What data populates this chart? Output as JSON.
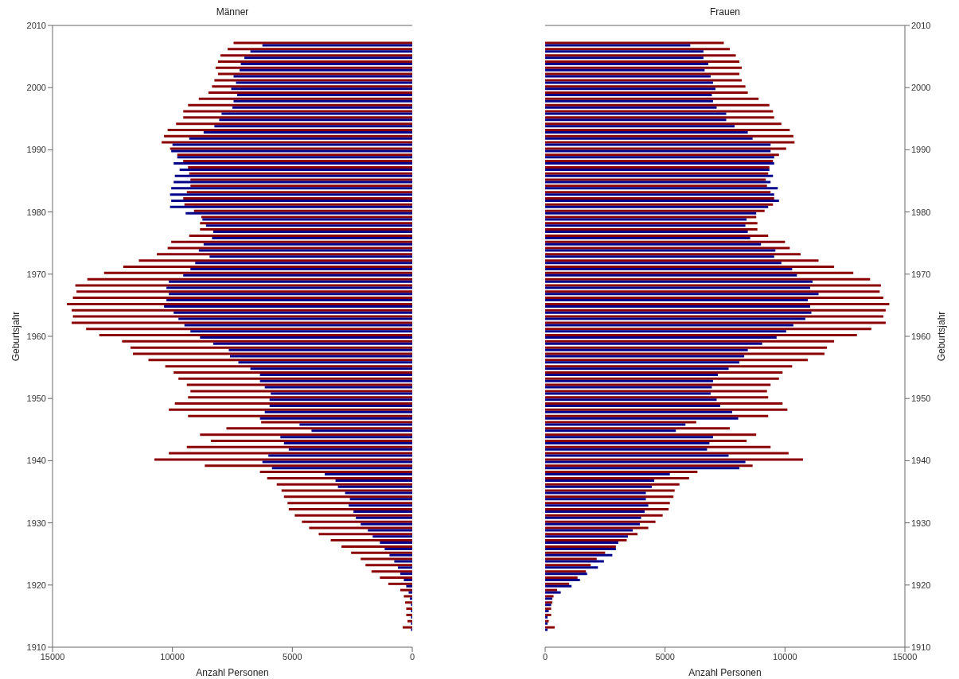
{
  "chart_data": [
    {
      "type": "bar",
      "orientation": "horizontal",
      "title": "Männer",
      "xlabel": "Anzahl Personen",
      "ylabel": "Geburtsjahr",
      "xlim": [
        15000,
        0
      ],
      "xticks": [
        15000,
        10000,
        5000,
        0
      ],
      "ylim": [
        1910,
        2010
      ],
      "yticks": [
        1910,
        1920,
        1930,
        1940,
        1950,
        1960,
        1970,
        1980,
        1990,
        2000,
        2010
      ],
      "x": [
        1913,
        1914,
        1915,
        1916,
        1917,
        1918,
        1919,
        1920,
        1921,
        1922,
        1923,
        1924,
        1925,
        1926,
        1927,
        1928,
        1929,
        1930,
        1931,
        1932,
        1933,
        1934,
        1935,
        1936,
        1937,
        1938,
        1939,
        1940,
        1941,
        1942,
        1943,
        1944,
        1945,
        1946,
        1947,
        1948,
        1949,
        1950,
        1951,
        1952,
        1953,
        1954,
        1955,
        1956,
        1957,
        1958,
        1959,
        1960,
        1961,
        1962,
        1963,
        1964,
        1965,
        1966,
        1967,
        1968,
        1969,
        1970,
        1971,
        1972,
        1973,
        1974,
        1975,
        1976,
        1977,
        1978,
        1979,
        1980,
        1981,
        1982,
        1983,
        1984,
        1985,
        1986,
        1987,
        1988,
        1989,
        1990,
        1991,
        1992,
        1993,
        1994,
        1995,
        1996,
        1997,
        1998,
        1999,
        2000,
        2001,
        2002,
        2003,
        2004,
        2005,
        2006,
        2007
      ],
      "series": [
        {
          "color": "#8b0000",
          "values": [
            400,
            200,
            250,
            250,
            300,
            350,
            500,
            1000,
            1350,
            1700,
            1950,
            2150,
            2550,
            2950,
            3400,
            3900,
            4300,
            4600,
            4900,
            5150,
            5200,
            5350,
            5450,
            5650,
            6050,
            6350,
            8650,
            10750,
            10150,
            9400,
            8400,
            8850,
            7750,
            6300,
            9350,
            10150,
            9900,
            9350,
            9250,
            9400,
            9750,
            9950,
            10300,
            11000,
            11650,
            11750,
            12100,
            13050,
            13600,
            14200,
            14150,
            14200,
            14400,
            14150,
            14000,
            14050,
            13550,
            12850,
            12050,
            11400,
            10650,
            10200,
            10050,
            9300,
            8850,
            8850,
            8800,
            9100,
            9500,
            9550,
            9400,
            9250,
            9250,
            9300,
            9350,
            9550,
            9800,
            10100,
            10450,
            10350,
            10200,
            9850,
            9550,
            9550,
            9350,
            8900,
            8500,
            8350,
            8250,
            8100,
            8200,
            8100,
            8000,
            7700,
            7450
          ]
        },
        {
          "color": "#00008b",
          "values": [
            50,
            50,
            50,
            50,
            50,
            100,
            150,
            250,
            350,
            500,
            600,
            750,
            950,
            1150,
            1350,
            1650,
            1850,
            2150,
            2350,
            2450,
            2650,
            2600,
            2800,
            3100,
            3200,
            3650,
            5850,
            6250,
            6000,
            5150,
            5350,
            5500,
            4200,
            4700,
            6350,
            6150,
            5950,
            5950,
            5900,
            6150,
            6350,
            6350,
            6750,
            7250,
            7600,
            7650,
            8300,
            8850,
            9250,
            9500,
            9750,
            9950,
            10350,
            10250,
            10150,
            10250,
            10150,
            9550,
            9250,
            9050,
            8450,
            8900,
            8700,
            8350,
            8300,
            8600,
            8750,
            9450,
            10100,
            10050,
            10100,
            10050,
            9950,
            9900,
            9700,
            9950,
            9800,
            10050,
            10000,
            9300,
            8700,
            8250,
            8050,
            7950,
            7500,
            7450,
            7300,
            7550,
            7350,
            7450,
            7200,
            7150,
            7000,
            6750,
            6250
          ]
        }
      ]
    },
    {
      "type": "bar",
      "orientation": "horizontal",
      "title": "Frauen",
      "xlabel": "Anzahl Personen",
      "ylabel": "Geburtsjahr",
      "xlim": [
        0,
        15000
      ],
      "xticks": [
        0,
        5000,
        10000,
        15000
      ],
      "ylim": [
        1910,
        2010
      ],
      "yticks": [
        1910,
        1920,
        1930,
        1940,
        1950,
        1960,
        1970,
        1980,
        1990,
        2000,
        2010
      ],
      "x": [
        1913,
        1914,
        1915,
        1916,
        1917,
        1918,
        1919,
        1920,
        1921,
        1922,
        1923,
        1924,
        1925,
        1926,
        1927,
        1928,
        1929,
        1930,
        1931,
        1932,
        1933,
        1934,
        1935,
        1936,
        1937,
        1938,
        1939,
        1940,
        1941,
        1942,
        1943,
        1944,
        1945,
        1946,
        1947,
        1948,
        1949,
        1950,
        1951,
        1952,
        1953,
        1954,
        1955,
        1956,
        1957,
        1958,
        1959,
        1960,
        1961,
        1962,
        1963,
        1964,
        1965,
        1966,
        1967,
        1968,
        1969,
        1970,
        1971,
        1972,
        1973,
        1974,
        1975,
        1976,
        1977,
        1978,
        1979,
        1980,
        1981,
        1982,
        1983,
        1984,
        1985,
        1986,
        1987,
        1988,
        1989,
        1990,
        1991,
        1992,
        1993,
        1994,
        1995,
        1996,
        1997,
        1998,
        1999,
        2000,
        2001,
        2002,
        2003,
        2004,
        2005,
        2006,
        2007
      ],
      "series": [
        {
          "color": "#8b0000",
          "values": [
            400,
            150,
            250,
            250,
            300,
            350,
            500,
            1000,
            1350,
            1700,
            1900,
            2150,
            2500,
            2950,
            3400,
            3850,
            4300,
            4600,
            4900,
            5150,
            5200,
            5350,
            5400,
            5600,
            6000,
            6350,
            8650,
            10750,
            10150,
            9400,
            8400,
            8800,
            7700,
            6300,
            9300,
            10100,
            9900,
            9300,
            9250,
            9400,
            9750,
            9900,
            10300,
            10950,
            11650,
            11750,
            12050,
            13000,
            13600,
            14200,
            14100,
            14200,
            14350,
            14100,
            13950,
            14000,
            13550,
            12850,
            12050,
            11400,
            10650,
            10200,
            10000,
            9300,
            8850,
            8850,
            8800,
            9150,
            9500,
            9550,
            9400,
            9250,
            9200,
            9300,
            9350,
            9500,
            9750,
            10050,
            10400,
            10350,
            10200,
            9850,
            9550,
            9500,
            9350,
            8900,
            8450,
            8350,
            8200,
            8100,
            8200,
            8100,
            7950,
            7700,
            7450
          ]
        },
        {
          "color": "#00008b",
          "values": [
            100,
            100,
            100,
            150,
            250,
            300,
            650,
            1100,
            1450,
            1750,
            2200,
            2450,
            2800,
            2950,
            3050,
            3450,
            3650,
            3950,
            4000,
            4150,
            4300,
            4200,
            4200,
            4450,
            4550,
            5200,
            8100,
            8350,
            7650,
            6750,
            6850,
            7000,
            5450,
            5850,
            8050,
            7800,
            7300,
            7150,
            6900,
            6950,
            7000,
            7200,
            7650,
            8100,
            8300,
            8450,
            9050,
            9650,
            10050,
            10350,
            10850,
            11100,
            11050,
            10950,
            11400,
            11050,
            11150,
            10500,
            10300,
            9850,
            9550,
            9600,
            9000,
            8550,
            8450,
            8350,
            8400,
            8800,
            9300,
            9750,
            9550,
            9700,
            9400,
            9500,
            9350,
            9550,
            9550,
            9400,
            9400,
            8650,
            8450,
            7900,
            7550,
            7550,
            7150,
            7000,
            6950,
            7100,
            7000,
            6900,
            6650,
            6800,
            6600,
            6600,
            6050
          ]
        }
      ]
    }
  ]
}
